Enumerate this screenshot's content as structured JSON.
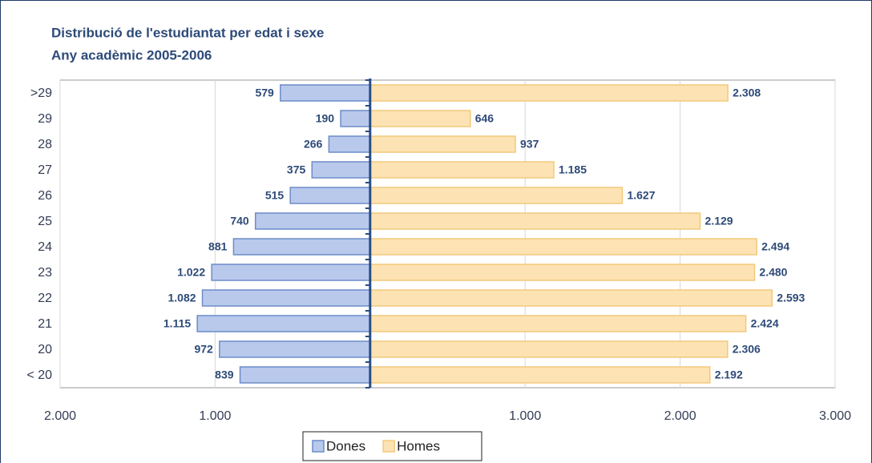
{
  "chart_data": {
    "type": "bar",
    "orientation": "horizontal",
    "title": "Distribució de l'estudiantat per edat i sexe",
    "subtitle": "Any acadèmic 2005-2006",
    "categories": [
      ">29",
      "29",
      "28",
      "27",
      "26",
      "25",
      "24",
      "23",
      "22",
      "21",
      "20",
      "< 20"
    ],
    "series": [
      {
        "name": "Dones",
        "color": "#b9c9ec",
        "edge": "#6c8cc9",
        "values": [
          -579,
          -190,
          -266,
          -375,
          -515,
          -740,
          -881,
          -1022,
          -1082,
          -1115,
          -972,
          -839
        ],
        "value_labels": [
          "579",
          "190",
          "266",
          "375",
          "515",
          "740",
          "881",
          "1.022",
          "1.082",
          "1.115",
          "972",
          "839"
        ]
      },
      {
        "name": "Homes",
        "color": "#fde3b3",
        "edge": "#f2c97c",
        "values": [
          2308,
          646,
          937,
          1185,
          1627,
          2129,
          2494,
          2480,
          2593,
          2424,
          2306,
          2192
        ],
        "value_labels": [
          "2.308",
          "646",
          "937",
          "1.185",
          "1.627",
          "2.129",
          "2.494",
          "2.480",
          "2.593",
          "2.424",
          "2.306",
          "2.192"
        ]
      }
    ],
    "xlim": [
      -2000,
      3000
    ],
    "xticks": [
      {
        "value": -2000,
        "label": "2.000"
      },
      {
        "value": -1000,
        "label": "1.000"
      },
      {
        "value": 1000,
        "label": "1.000"
      },
      {
        "value": 2000,
        "label": "2.000"
      },
      {
        "value": 3000,
        "label": "3.000"
      }
    ],
    "grid": true,
    "legend": "bottom"
  }
}
